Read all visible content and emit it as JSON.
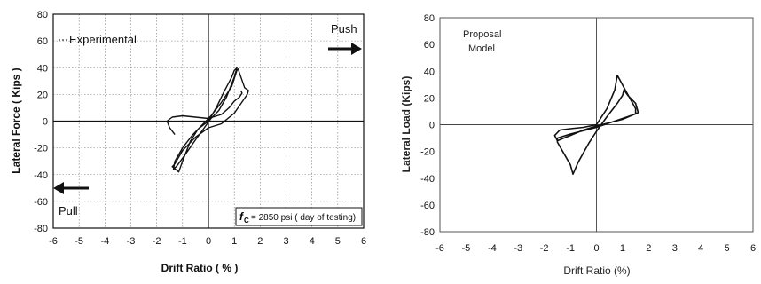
{
  "chart_data": [
    {
      "type": "line",
      "xlabel": "Drift Ratio ( % )",
      "ylabel": "Lateral Force ( Kips )",
      "xlim": [
        -6,
        6
      ],
      "ylim": [
        -80,
        80
      ],
      "x_ticks": [
        "-6",
        "-5",
        "-4",
        "-3",
        "-2",
        "-1",
        "0",
        "1",
        "2",
        "3",
        "4",
        "5",
        "6"
      ],
      "y_ticks": [
        "80",
        "60",
        "40",
        "20",
        "0",
        "-20",
        "-40",
        "-60",
        "-80"
      ],
      "grid": true,
      "annotations": {
        "legend": "Experimental",
        "push": "Push",
        "pull": "Pull",
        "fc_symbol": "f",
        "fc_sub": "C",
        "fc_text": "= 2850 psi ( day of testing)"
      },
      "series": [
        {
          "values": [
            [
              0,
              0
            ],
            [
              0.3,
              10
            ],
            [
              0.6,
              22
            ],
            [
              0.9,
              33
            ],
            [
              1.0,
              38
            ],
            [
              1.1,
              40
            ],
            [
              1.0,
              33
            ],
            [
              0.7,
              18
            ],
            [
              0.4,
              8
            ],
            [
              0.1,
              2
            ],
            [
              -0.2,
              -6
            ],
            [
              -0.5,
              -14
            ],
            [
              -0.9,
              -25
            ],
            [
              -1.2,
              -33
            ],
            [
              -1.35,
              -36
            ],
            [
              -1.3,
              -30
            ],
            [
              -1.0,
              -20
            ],
            [
              -0.6,
              -10
            ],
            [
              -0.2,
              -2
            ],
            [
              0.1,
              4
            ],
            [
              0.5,
              14
            ],
            [
              0.9,
              26
            ],
            [
              1.1,
              38
            ],
            [
              1.15,
              39
            ],
            [
              1.4,
              25
            ],
            [
              1.55,
              23
            ],
            [
              1.5,
              20
            ],
            [
              1.0,
              6
            ],
            [
              0.5,
              -2
            ],
            [
              0,
              -5
            ],
            [
              -0.5,
              -12
            ],
            [
              -1.0,
              -22
            ],
            [
              -1.3,
              -32
            ],
            [
              -1.4,
              -34
            ],
            [
              -1.15,
              -38
            ],
            [
              -1.0,
              -30
            ],
            [
              -0.7,
              -15
            ],
            [
              -0.4,
              -6
            ],
            [
              0,
              0
            ]
          ]
        },
        {
          "values": [
            [
              -1.3,
              -10
            ],
            [
              -1.5,
              -5
            ],
            [
              -1.6,
              0
            ],
            [
              -1.4,
              3
            ],
            [
              -1.0,
              4
            ],
            [
              -0.5,
              3
            ],
            [
              0,
              2
            ],
            [
              0.5,
              5
            ],
            [
              0.8,
              10
            ],
            [
              1.0,
              15
            ],
            [
              1.2,
              18
            ],
            [
              1.3,
              21
            ],
            [
              1.25,
              23
            ]
          ]
        }
      ]
    },
    {
      "type": "line",
      "xlabel": "Drift Ratio (%)",
      "ylabel": "Lateral Load (Kips)",
      "xlim": [
        -6,
        6
      ],
      "ylim": [
        -80,
        80
      ],
      "x_ticks": [
        "-6",
        "-5",
        "-4",
        "-3",
        "-2",
        "-1",
        "0",
        "1",
        "2",
        "3",
        "4",
        "5",
        "6"
      ],
      "y_ticks": [
        "80",
        "60",
        "40",
        "20",
        "0",
        "-20",
        "-40",
        "-60",
        "-80"
      ],
      "grid": false,
      "annotations": {
        "legend_line1": "Proposal",
        "legend_line2": "Model"
      },
      "series": [
        {
          "values": [
            [
              0,
              0
            ],
            [
              0.4,
              12
            ],
            [
              0.7,
              26
            ],
            [
              0.8,
              37
            ],
            [
              1.1,
              26
            ],
            [
              1.5,
              12
            ],
            [
              1.5,
              8
            ],
            [
              1.2,
              6
            ],
            [
              0.6,
              2
            ],
            [
              0,
              -2
            ],
            [
              -0.6,
              -5
            ],
            [
              -1.0,
              -7
            ],
            [
              -1.5,
              -10
            ],
            [
              -1.5,
              -13
            ],
            [
              -1.0,
              -30
            ],
            [
              -0.9,
              -37
            ],
            [
              -0.7,
              -28
            ],
            [
              -0.3,
              -14
            ],
            [
              0,
              -5
            ],
            [
              0.4,
              6
            ],
            [
              0.8,
              16
            ],
            [
              1.0,
              22
            ],
            [
              1.05,
              26
            ],
            [
              1.2,
              22
            ],
            [
              1.5,
              16
            ],
            [
              1.6,
              9
            ],
            [
              1.0,
              4
            ],
            [
              0.4,
              1
            ],
            [
              0,
              -1
            ],
            [
              -0.5,
              -4
            ],
            [
              -1.0,
              -8
            ],
            [
              -1.5,
              -12
            ],
            [
              -1.6,
              -8
            ],
            [
              -1.4,
              -4
            ],
            [
              -1.0,
              -3
            ],
            [
              -0.5,
              -2
            ],
            [
              0,
              0
            ]
          ]
        }
      ]
    }
  ]
}
